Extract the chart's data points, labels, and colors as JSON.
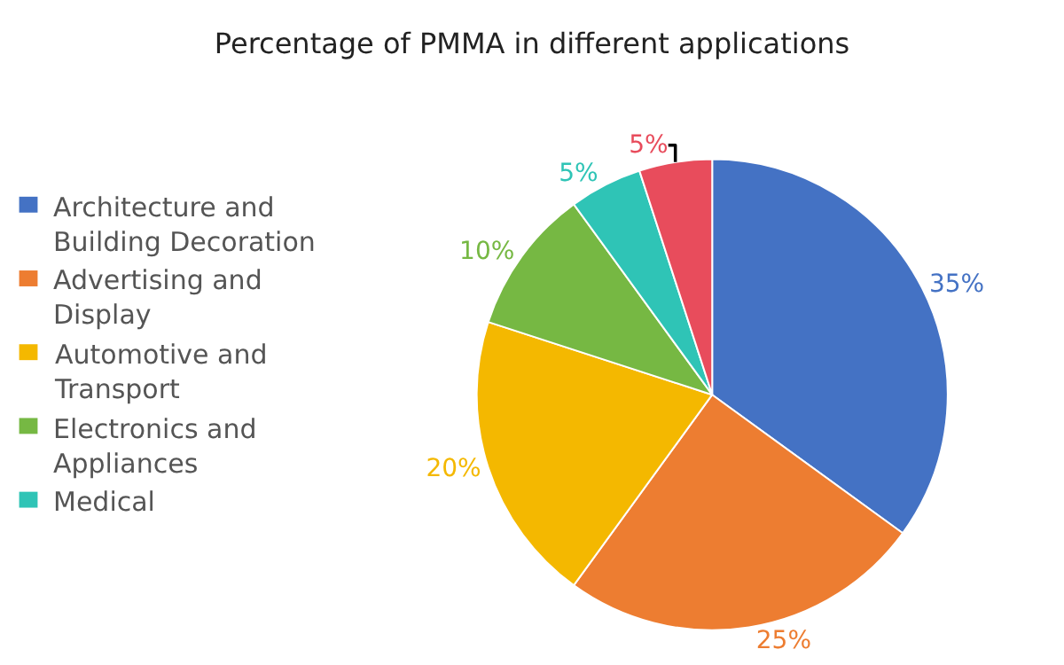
{
  "chart_data": {
    "type": "pie",
    "title": "Percentage of PMMA in different applications",
    "categories": [
      "Architecture and Building Decoration",
      "Advertising and Display",
      "Automotive and Transport",
      "Electronics and Appliances",
      "Medical",
      null
    ],
    "values": [
      35,
      25,
      20,
      10,
      5,
      5
    ],
    "value_labels": [
      "35%",
      "25%",
      "20%",
      "10%",
      "5%",
      "5%"
    ],
    "colors": [
      "#4472c4",
      "#ed7d31",
      "#f4b800",
      "#76b843",
      "#2fc4b6",
      "#e84c5c"
    ],
    "legend": "left"
  }
}
